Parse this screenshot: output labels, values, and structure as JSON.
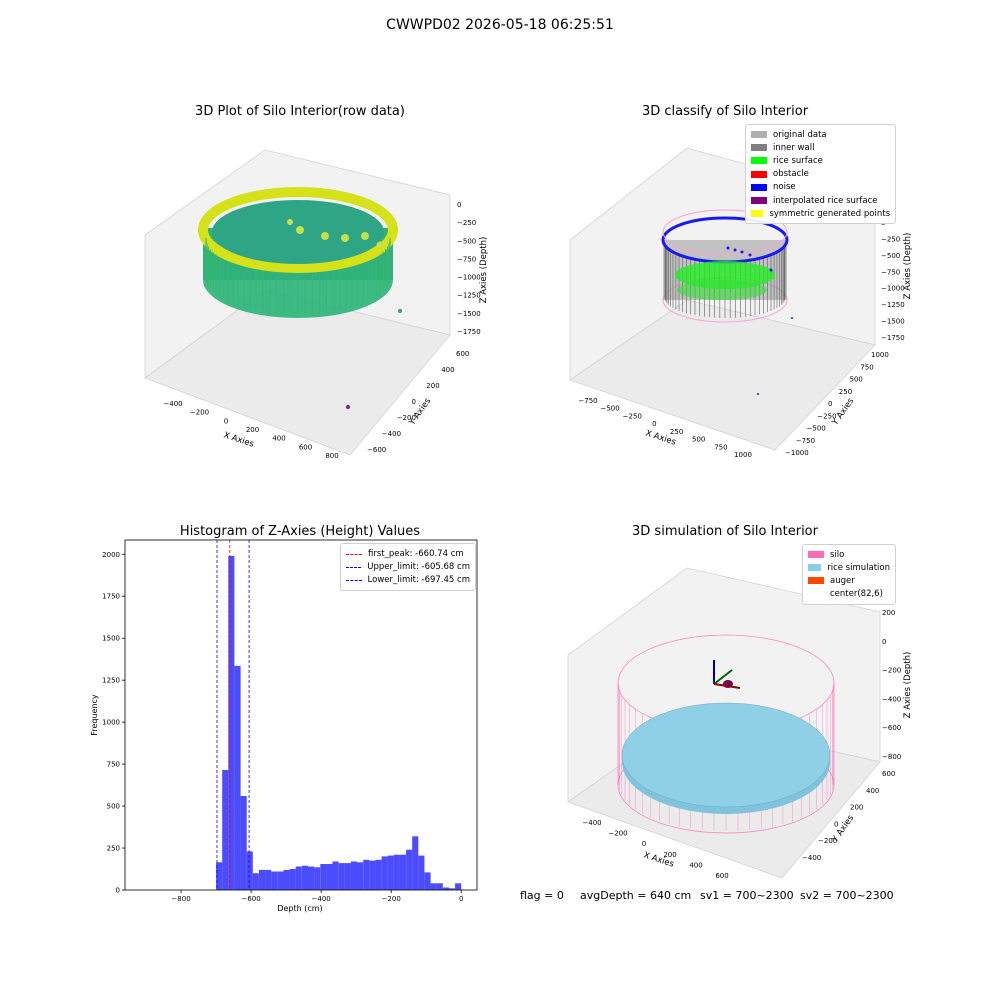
{
  "suptitle": "CWWPD02 2026-05-18 06:25:51",
  "plots": {
    "raw": {
      "title": "3D Plot of Silo Interior(row data)",
      "xlabel": "X Axies",
      "ylabel": "Y Axies",
      "zlabel": "Z Axies (Depth)",
      "xticks": [
        "−400",
        "−200",
        "0",
        "200",
        "400",
        "600",
        "800"
      ],
      "yticks": [
        "600",
        "400",
        "200",
        "0",
        "−200",
        "−400",
        "−600"
      ],
      "zticks": [
        "0",
        "−250",
        "−500",
        "−750",
        "−1000",
        "−1250",
        "−1500",
        "−1750"
      ]
    },
    "classify": {
      "title": "3D classify of Silo Interior",
      "xlabel": "X Axies",
      "ylabel": "Y Axies",
      "zlabel": "Z Axies (Depth)",
      "xticks": [
        "−750",
        "−500",
        "−250",
        "0",
        "250",
        "500",
        "750",
        "1000"
      ],
      "yticks": [
        "1000",
        "750",
        "500",
        "250",
        "0",
        "−250",
        "−500",
        "−750",
        "−1000"
      ],
      "zticks": [
        "0",
        "−250",
        "−500",
        "−750",
        "−1000",
        "−1250",
        "−1500",
        "−1750"
      ],
      "legend": [
        {
          "label": "original data",
          "color": "#b0b0b0"
        },
        {
          "label": "inner wall",
          "color": "#808080"
        },
        {
          "label": "rice surface",
          "color": "#00ff00"
        },
        {
          "label": "obstacle",
          "color": "#ff0000"
        },
        {
          "label": "noise",
          "color": "#0000ff"
        },
        {
          "label": "interpolated rice surface",
          "color": "#800080"
        },
        {
          "label": "symmetric generated points",
          "color": "#ffff00"
        }
      ]
    },
    "simulation": {
      "title": "3D simulation of Silo Interior",
      "xlabel": "X Axies",
      "ylabel": "Y Axies",
      "zlabel": "Z Axies (Depth)",
      "xticks": [
        "−400",
        "−200",
        "0",
        "200",
        "400",
        "600"
      ],
      "yticks": [
        "600",
        "400",
        "200",
        "0",
        "−200",
        "−400"
      ],
      "zticks": [
        "200",
        "0",
        "−200",
        "−400",
        "−600",
        "−800"
      ],
      "legend": [
        {
          "label": "silo",
          "color": "#ff69b4"
        },
        {
          "label": "rice simulation",
          "color": "#87ceeb"
        },
        {
          "label": "auger",
          "color": "#ff4500"
        },
        {
          "label": "center(82,6)",
          "color": "#ffffff"
        }
      ]
    }
  },
  "footer": {
    "flag": "flag = 0",
    "avg_depth": "avgDepth = 640 cm",
    "sv1": "sv1 = 700~2300",
    "sv2": "sv2 = 700~2300"
  },
  "chart_data": [
    {
      "type": "bar",
      "title": "Histogram of Z-Axies (Height) Values",
      "xlabel": "Depth (cm)",
      "ylabel": "Frequency",
      "xlim": [
        -960,
        45
      ],
      "ylim": [
        0,
        2085
      ],
      "xticks": [
        -800,
        -600,
        -400,
        -200,
        0
      ],
      "xtick_labels": [
        "−800",
        "−600",
        "−400",
        "−200",
        "0"
      ],
      "yticks": [
        0,
        250,
        500,
        750,
        1000,
        1250,
        1500,
        1750,
        2000
      ],
      "bin_width": 17.5,
      "bins_start": [
        -700,
        -682.5,
        -665,
        -647.5,
        -630,
        -612.5,
        -595,
        -577.5,
        -560,
        -542.5,
        -525,
        -507.5,
        -490,
        -472.5,
        -455,
        -437.5,
        -420,
        -402.5,
        -385,
        -367.5,
        -350,
        -332.5,
        -315,
        -297.5,
        -280,
        -262.5,
        -245,
        -227.5,
        -210,
        -192.5,
        -175,
        -157.5,
        -140,
        -122.5,
        -105,
        -87.5,
        -70,
        -52.5,
        -35,
        -17.5
      ],
      "values": [
        165,
        715,
        1990,
        1335,
        560,
        230,
        100,
        120,
        120,
        110,
        110,
        120,
        125,
        140,
        145,
        140,
        135,
        155,
        155,
        170,
        160,
        160,
        170,
        165,
        180,
        175,
        180,
        200,
        205,
        210,
        210,
        240,
        320,
        205,
        105,
        40,
        40,
        15,
        10,
        40
      ],
      "bar_color": "#0000ff",
      "vlines": [
        {
          "label": "first_peak: -660.74 cm",
          "x": -660.74,
          "color": "#ff0000"
        },
        {
          "label": "Upper_limit: -605.68 cm",
          "x": -605.68,
          "color": "#0000ff"
        },
        {
          "label": "Lower_limit: -697.45 cm",
          "x": -697.45,
          "color": "#0000ff"
        }
      ],
      "legend_position": "top-right"
    }
  ]
}
